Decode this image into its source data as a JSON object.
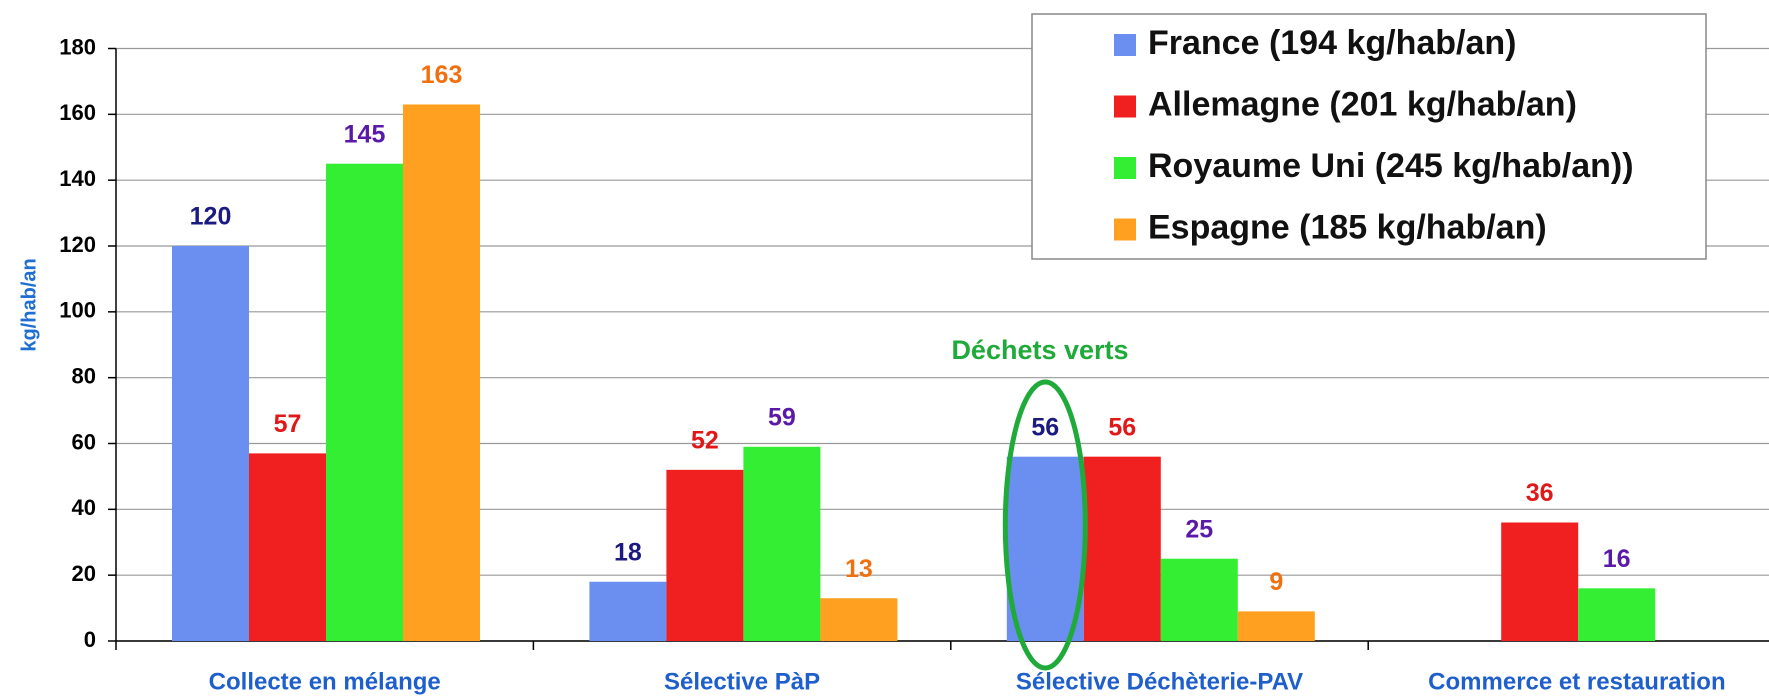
{
  "chart_data": {
    "type": "bar",
    "y_label": "kg/hab/an",
    "categories": [
      "Collecte en mélange",
      "Sélective PàP",
      "Sélective Déchèterie-PAV",
      "Commerce et restauration"
    ],
    "series": [
      {
        "name": "France (194 kg/hab/an)",
        "color": "#6b8ff0",
        "label_color": "#1a1a80",
        "values": [
          120,
          18,
          56,
          null
        ]
      },
      {
        "name": "Allemagne (201 kg/hab/an)",
        "color": "#f02020",
        "label_color": "#e01818",
        "values": [
          57,
          52,
          56,
          36
        ]
      },
      {
        "name": "Royaume Uni (245 kg/hab/an))",
        "color": "#33ee33",
        "label_color": "#5a1aa8",
        "values": [
          145,
          59,
          25,
          16
        ]
      },
      {
        "name": "Espagne (185 kg/hab/an)",
        "color": "#ffa020",
        "label_color": "#f07010",
        "values": [
          163,
          13,
          9,
          null
        ]
      }
    ],
    "ylim": [
      0,
      180
    ],
    "yticks": [
      0,
      20,
      40,
      60,
      80,
      100,
      120,
      140,
      160,
      180
    ],
    "grid": true,
    "legend": "top-right",
    "annotation": "Déchets verts",
    "annotation_color": "#1faa3a"
  }
}
